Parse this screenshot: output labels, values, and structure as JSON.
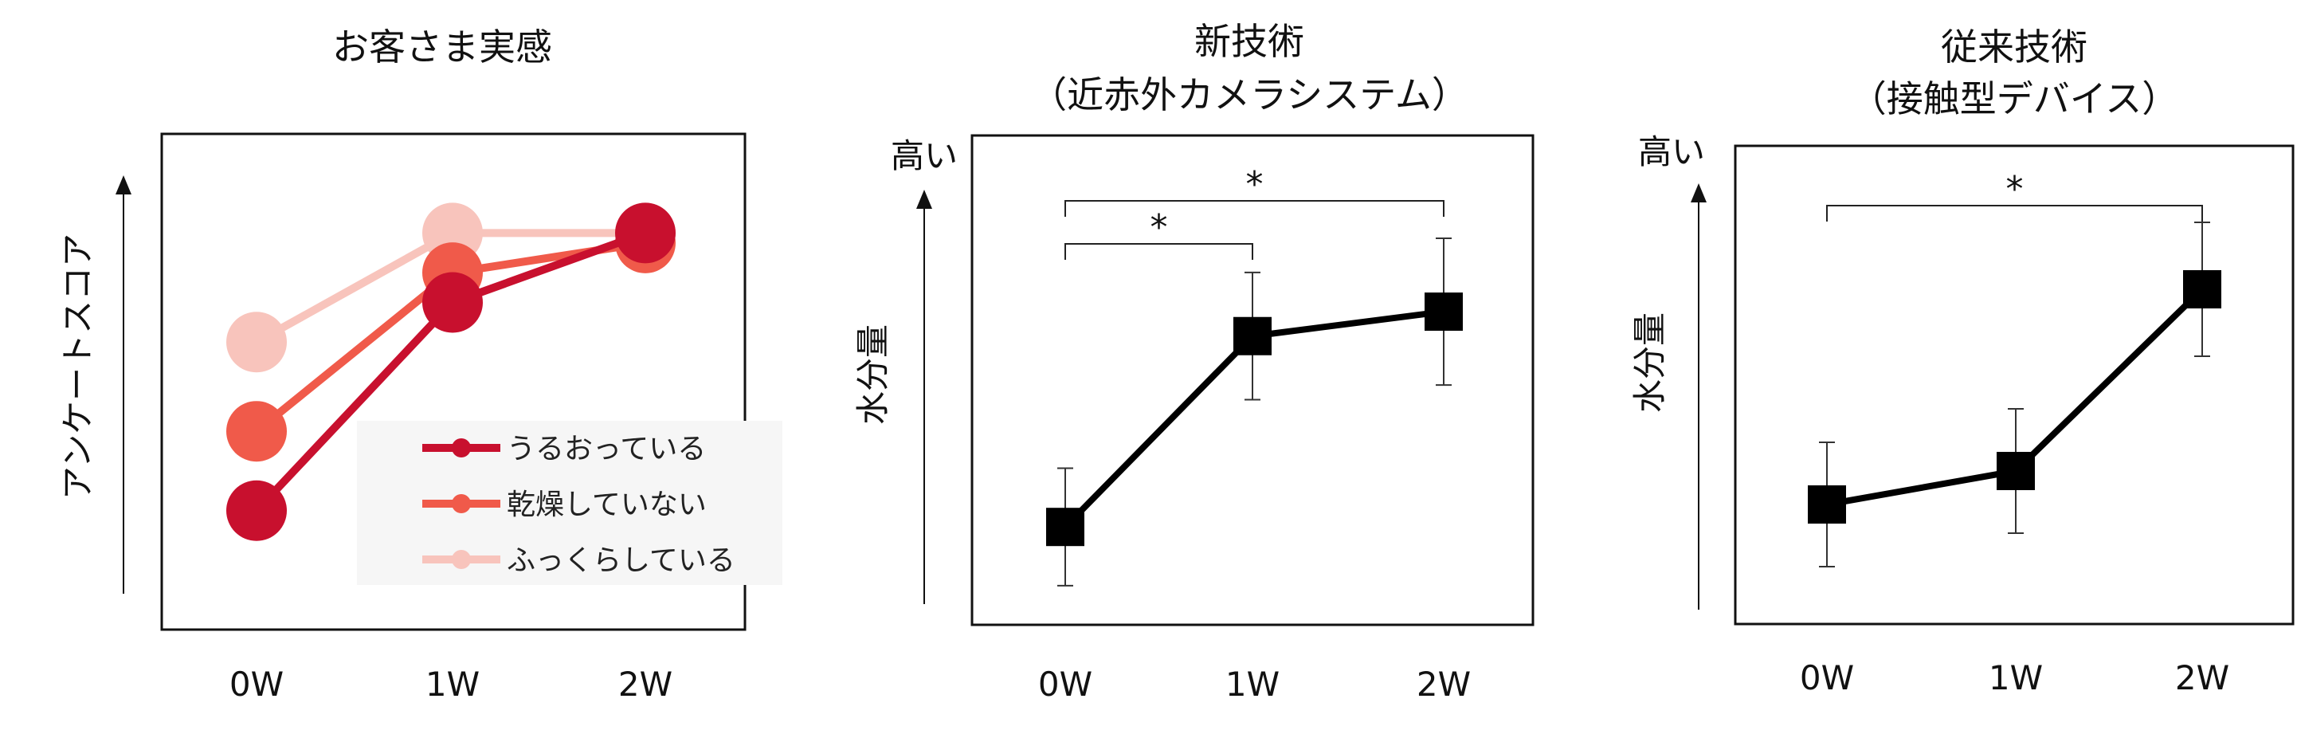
{
  "colors": {
    "series1": "#c8102e",
    "series2": "#f05a4a",
    "series3": "#f8c4bc",
    "black": "#000000"
  },
  "chart_data": [
    {
      "type": "line",
      "title": "お客さま実感",
      "ylabel": "アンケートスコア",
      "categories": [
        "0W",
        "1W",
        "2W"
      ],
      "ylim": [
        0,
        10
      ],
      "legend": "bottom-right",
      "grid": false,
      "series": [
        {
          "name": "うるおっている",
          "values": [
            2.4,
            6.6,
            8.0
          ]
        },
        {
          "name": "乾燥していない",
          "values": [
            4.0,
            7.2,
            7.8
          ]
        },
        {
          "name": "ふっくらしている",
          "values": [
            5.8,
            8.0,
            8.0
          ]
        }
      ]
    },
    {
      "type": "line",
      "title": "新技術",
      "subtitle": "（近赤外カメラシステム）",
      "ylabel": "水分量",
      "yaxis_top_label": "高い",
      "categories": [
        "0W",
        "1W",
        "2W"
      ],
      "ylim": [
        0,
        10
      ],
      "grid": false,
      "series": [
        {
          "values": [
            2.0,
            5.9,
            6.4
          ],
          "error": [
            1.2,
            1.3,
            1.5
          ]
        }
      ],
      "significance": [
        {
          "from": "0W",
          "to": "1W",
          "label": "*"
        },
        {
          "from": "0W",
          "to": "2W",
          "label": "*"
        }
      ]
    },
    {
      "type": "line",
      "title": "従来技術",
      "subtitle": "（接触型デバイス）",
      "ylabel": "水分量",
      "yaxis_top_label": "高い",
      "categories": [
        "0W",
        "1W",
        "2W"
      ],
      "ylim": [
        0,
        10
      ],
      "grid": false,
      "series": [
        {
          "values": [
            2.5,
            3.2,
            7.0
          ],
          "error": [
            1.3,
            1.3,
            1.4
          ]
        }
      ],
      "significance": [
        {
          "from": "0W",
          "to": "2W",
          "label": "*"
        }
      ]
    }
  ]
}
